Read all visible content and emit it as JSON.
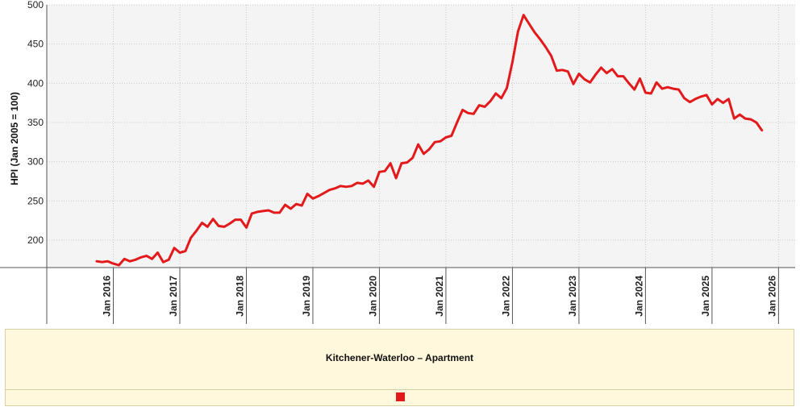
{
  "chart_data": {
    "type": "line",
    "title": "Kitchener-Waterloo – Apartment",
    "ylabel": "HPI (Jan 2005 = 100)",
    "xlabel": "",
    "ylim": [
      165,
      500
    ],
    "xlim": [
      "2015-01",
      "2026-04"
    ],
    "grid": true,
    "legend_position": "bottom",
    "x_tick_labels": [
      "Jan 2016",
      "Jan 2017",
      "Jan 2018",
      "Jan 2019",
      "Jan 2020",
      "Jan 2021",
      "Jan 2022",
      "Jan 2023",
      "Jan 2024",
      "Jan 2025",
      "Jan 2026"
    ],
    "y_ticks": [
      200,
      250,
      300,
      350,
      400,
      450,
      500
    ],
    "line_color": "#e31a1c",
    "series": [
      {
        "color": "#e31a1c",
        "x": [
          "2015-10",
          "2015-11",
          "2015-12",
          "2016-01",
          "2016-02",
          "2016-03",
          "2016-04",
          "2016-05",
          "2016-06",
          "2016-07",
          "2016-08",
          "2016-09",
          "2016-10",
          "2016-11",
          "2016-12",
          "2017-01",
          "2017-02",
          "2017-03",
          "2017-04",
          "2017-05",
          "2017-06",
          "2017-07",
          "2017-08",
          "2017-09",
          "2017-10",
          "2017-11",
          "2017-12",
          "2018-01",
          "2018-02",
          "2018-03",
          "2018-04",
          "2018-05",
          "2018-06",
          "2018-07",
          "2018-08",
          "2018-09",
          "2018-10",
          "2018-11",
          "2018-12",
          "2019-01",
          "2019-02",
          "2019-03",
          "2019-04",
          "2019-05",
          "2019-06",
          "2019-07",
          "2019-08",
          "2019-09",
          "2019-10",
          "2019-11",
          "2019-12",
          "2020-01",
          "2020-02",
          "2020-03",
          "2020-04",
          "2020-05",
          "2020-06",
          "2020-07",
          "2020-08",
          "2020-09",
          "2020-10",
          "2020-11",
          "2020-12",
          "2021-01",
          "2021-02",
          "2021-03",
          "2021-04",
          "2021-05",
          "2021-06",
          "2021-07",
          "2021-08",
          "2021-09",
          "2021-10",
          "2021-11",
          "2021-12",
          "2022-01",
          "2022-02",
          "2022-03",
          "2022-04",
          "2022-05",
          "2022-06",
          "2022-07",
          "2022-08",
          "2022-09",
          "2022-10",
          "2022-11",
          "2022-12",
          "2023-01",
          "2023-02",
          "2023-03",
          "2023-04",
          "2023-05",
          "2023-06",
          "2023-07",
          "2023-08",
          "2023-09",
          "2023-10",
          "2023-11",
          "2023-12",
          "2024-01",
          "2024-02",
          "2024-03",
          "2024-04",
          "2024-05",
          "2024-06",
          "2024-07",
          "2024-08",
          "2024-09",
          "2024-10",
          "2024-11",
          "2024-12",
          "2025-01",
          "2025-02",
          "2025-03",
          "2025-04",
          "2025-05",
          "2025-06",
          "2025-07",
          "2025-08",
          "2025-09",
          "2025-10"
        ],
        "y": [
          173,
          172,
          173,
          170,
          168,
          176,
          173,
          175,
          178,
          180,
          176,
          184,
          172,
          175,
          190,
          184,
          186,
          203,
          212,
          222,
          217,
          227,
          218,
          217,
          221,
          226,
          226,
          216,
          234,
          236,
          237,
          238,
          235,
          235,
          245,
          240,
          246,
          244,
          259,
          253,
          256,
          260,
          264,
          266,
          269,
          268,
          269,
          273,
          272,
          276,
          268,
          287,
          288,
          298,
          279,
          298,
          299,
          305,
          322,
          310,
          316,
          325,
          326,
          331,
          333,
          350,
          366,
          362,
          361,
          372,
          370,
          377,
          387,
          381,
          394,
          427,
          466,
          487,
          476,
          465,
          456,
          446,
          435,
          416,
          417,
          415,
          399,
          412,
          405,
          401,
          411,
          420,
          413,
          418,
          409,
          409,
          400,
          392,
          406,
          388,
          387,
          401,
          393,
          395,
          393,
          392,
          381,
          376,
          380,
          383,
          385,
          373,
          380,
          375,
          380,
          355,
          360,
          355,
          354,
          350,
          340
        ]
      }
    ]
  }
}
